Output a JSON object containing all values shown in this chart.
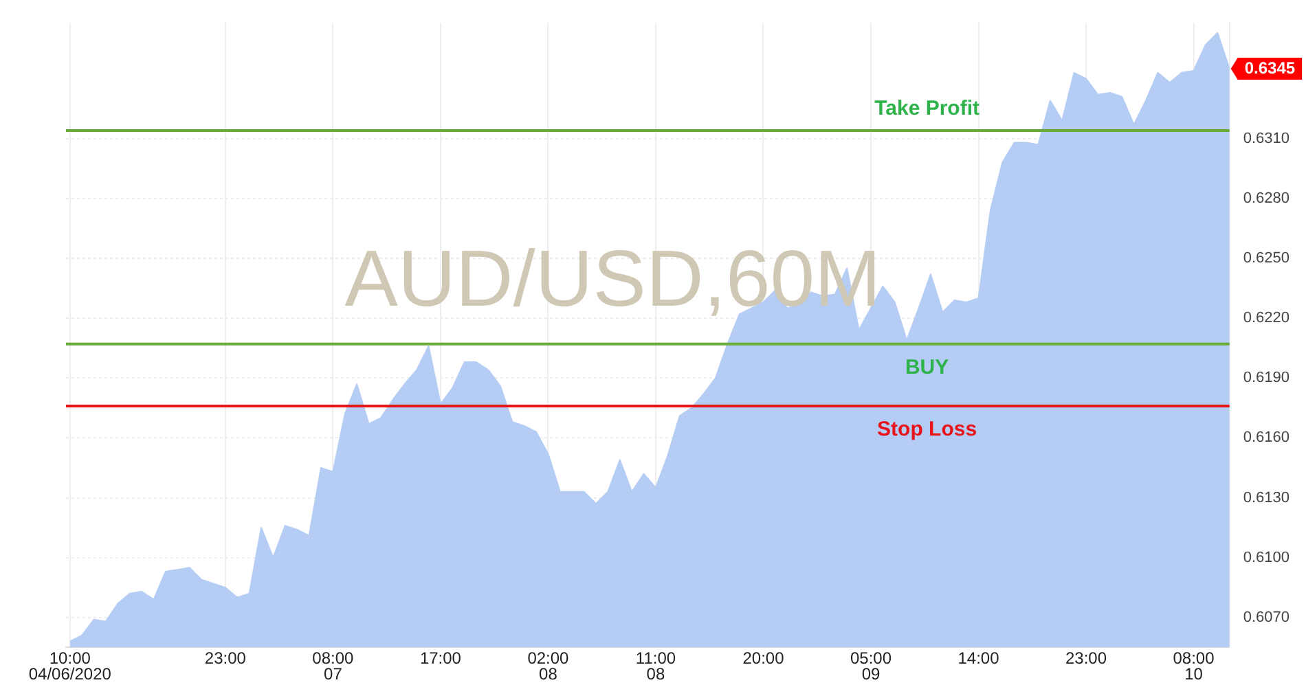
{
  "chart_data": {
    "type": "area",
    "title": "AUD/USD,60M",
    "x": [
      "2020-04-06T10:00",
      "2020-04-06T11:00",
      "2020-04-06T12:00",
      "2020-04-06T13:00",
      "2020-04-06T14:00",
      "2020-04-06T15:00",
      "2020-04-06T16:00",
      "2020-04-06T17:00",
      "2020-04-06T18:00",
      "2020-04-06T19:00",
      "2020-04-06T20:00",
      "2020-04-06T21:00",
      "2020-04-06T22:00",
      "2020-04-06T23:00",
      "2020-04-07T00:00",
      "2020-04-07T01:00",
      "2020-04-07T02:00",
      "2020-04-07T03:00",
      "2020-04-07T04:00",
      "2020-04-07T05:00",
      "2020-04-07T06:00",
      "2020-04-07T07:00",
      "2020-04-07T08:00",
      "2020-04-07T09:00",
      "2020-04-07T10:00",
      "2020-04-07T11:00",
      "2020-04-07T12:00",
      "2020-04-07T13:00",
      "2020-04-07T14:00",
      "2020-04-07T15:00",
      "2020-04-07T16:00",
      "2020-04-07T17:00",
      "2020-04-07T18:00",
      "2020-04-07T19:00",
      "2020-04-07T20:00",
      "2020-04-07T21:00",
      "2020-04-07T22:00",
      "2020-04-07T23:00",
      "2020-04-08T00:00",
      "2020-04-08T01:00",
      "2020-04-08T02:00",
      "2020-04-08T03:00",
      "2020-04-08T04:00",
      "2020-04-08T05:00",
      "2020-04-08T06:00",
      "2020-04-08T07:00",
      "2020-04-08T08:00",
      "2020-04-08T09:00",
      "2020-04-08T10:00",
      "2020-04-08T11:00",
      "2020-04-08T12:00",
      "2020-04-08T13:00",
      "2020-04-08T14:00",
      "2020-04-08T15:00",
      "2020-04-08T16:00",
      "2020-04-08T17:00",
      "2020-04-08T18:00",
      "2020-04-08T19:00",
      "2020-04-08T20:00",
      "2020-04-08T21:00",
      "2020-04-08T22:00",
      "2020-04-08T23:00",
      "2020-04-09T00:00",
      "2020-04-09T01:00",
      "2020-04-09T02:00",
      "2020-04-09T03:00",
      "2020-04-09T04:00",
      "2020-04-09T05:00",
      "2020-04-09T06:00",
      "2020-04-09T07:00",
      "2020-04-09T08:00",
      "2020-04-09T09:00",
      "2020-04-09T10:00",
      "2020-04-09T11:00",
      "2020-04-09T12:00",
      "2020-04-09T13:00",
      "2020-04-09T14:00",
      "2020-04-09T15:00",
      "2020-04-09T16:00",
      "2020-04-09T17:00",
      "2020-04-09T18:00",
      "2020-04-09T19:00",
      "2020-04-09T20:00",
      "2020-04-09T21:00",
      "2020-04-09T22:00",
      "2020-04-09T23:00",
      "2020-04-10T00:00",
      "2020-04-10T01:00",
      "2020-04-10T02:00",
      "2020-04-10T03:00",
      "2020-04-10T04:00",
      "2020-04-10T05:00",
      "2020-04-10T06:00",
      "2020-04-10T07:00",
      "2020-04-10T08:00",
      "2020-04-10T09:00",
      "2020-04-10T10:00",
      "2020-04-10T11:00"
    ],
    "series": [
      {
        "color": "#b5cdf4",
        "values": [
          0.6058,
          0.6061,
          0.6069,
          0.6068,
          0.6077,
          0.6082,
          0.6083,
          0.6079,
          0.6093,
          0.6094,
          0.6095,
          0.6089,
          0.6087,
          0.6085,
          0.608,
          0.6082,
          0.6115,
          0.61,
          0.6116,
          0.6114,
          0.6111,
          0.6145,
          0.6143,
          0.6172,
          0.6187,
          0.6167,
          0.617,
          0.6179,
          0.6187,
          0.6194,
          0.6206,
          0.6177,
          0.6185,
          0.6198,
          0.6198,
          0.6194,
          0.6186,
          0.6168,
          0.6166,
          0.6163,
          0.6152,
          0.6133,
          0.6133,
          0.6133,
          0.6127,
          0.6133,
          0.6149,
          0.6133,
          0.6142,
          0.6135,
          0.6151,
          0.6171,
          0.6175,
          0.6182,
          0.619,
          0.6207,
          0.6222,
          0.6225,
          0.6228,
          0.6234,
          0.6225,
          0.6227,
          0.6233,
          0.6231,
          0.6232,
          0.6245,
          0.6214,
          0.6225,
          0.6236,
          0.6228,
          0.6209,
          0.6225,
          0.6242,
          0.6223,
          0.6229,
          0.6228,
          0.623,
          0.6274,
          0.6298,
          0.6308,
          0.6308,
          0.6307,
          0.6329,
          0.6319,
          0.6343,
          0.634,
          0.6332,
          0.6333,
          0.6331,
          0.6317,
          0.6329,
          0.6343,
          0.6338,
          0.6343,
          0.6344,
          0.6357,
          0.6363,
          0.6345
        ]
      }
    ],
    "xlim": [
      "2020-04-06T09:40",
      "2020-04-10T11:00"
    ],
    "xticks": [
      {
        "value": "2020-04-06T10:00",
        "label": "10:00\n04/06/2020"
      },
      {
        "value": "2020-04-06T23:00",
        "label": "23:00"
      },
      {
        "value": "2020-04-07T08:00",
        "label": "08:00\n07"
      },
      {
        "value": "2020-04-07T17:00",
        "label": "17:00"
      },
      {
        "value": "2020-04-08T02:00",
        "label": "02:00\n08"
      },
      {
        "value": "2020-04-08T11:00",
        "label": "11:00\n08"
      },
      {
        "value": "2020-04-08T20:00",
        "label": "20:00"
      },
      {
        "value": "2020-04-09T05:00",
        "label": "05:00\n09"
      },
      {
        "value": "2020-04-09T14:00",
        "label": "14:00"
      },
      {
        "value": "2020-04-09T23:00",
        "label": "23:00"
      },
      {
        "value": "2020-04-10T08:00",
        "label": "08:00\n10"
      }
    ],
    "ylim": [
      0.6055,
      0.6368
    ],
    "yticks": [
      {
        "value": 0.607,
        "label": "0.6070"
      },
      {
        "value": 0.61,
        "label": "0.6100"
      },
      {
        "value": 0.613,
        "label": "0.6130"
      },
      {
        "value": 0.616,
        "label": "0.6160"
      },
      {
        "value": 0.619,
        "label": "0.6190"
      },
      {
        "value": 0.622,
        "label": "0.6220"
      },
      {
        "value": 0.625,
        "label": "0.6250"
      },
      {
        "value": 0.628,
        "label": "0.6280"
      },
      {
        "value": 0.631,
        "label": "0.6310"
      }
    ],
    "ref_lines": [
      {
        "axis": "y",
        "value": 0.6314,
        "label": "Take Profit",
        "color": "#6aaa3a"
      },
      {
        "axis": "y",
        "value": 0.6207,
        "label": "BUY",
        "color": "#6aaa3a"
      },
      {
        "axis": "y",
        "value": 0.6176,
        "label": "Stop Loss",
        "color": "#e8141c"
      }
    ],
    "annotations": [
      {
        "text": "0.6345",
        "x": "2020-04-10T11:00",
        "y": 0.6345
      }
    ],
    "grid": true,
    "legend": false
  }
}
